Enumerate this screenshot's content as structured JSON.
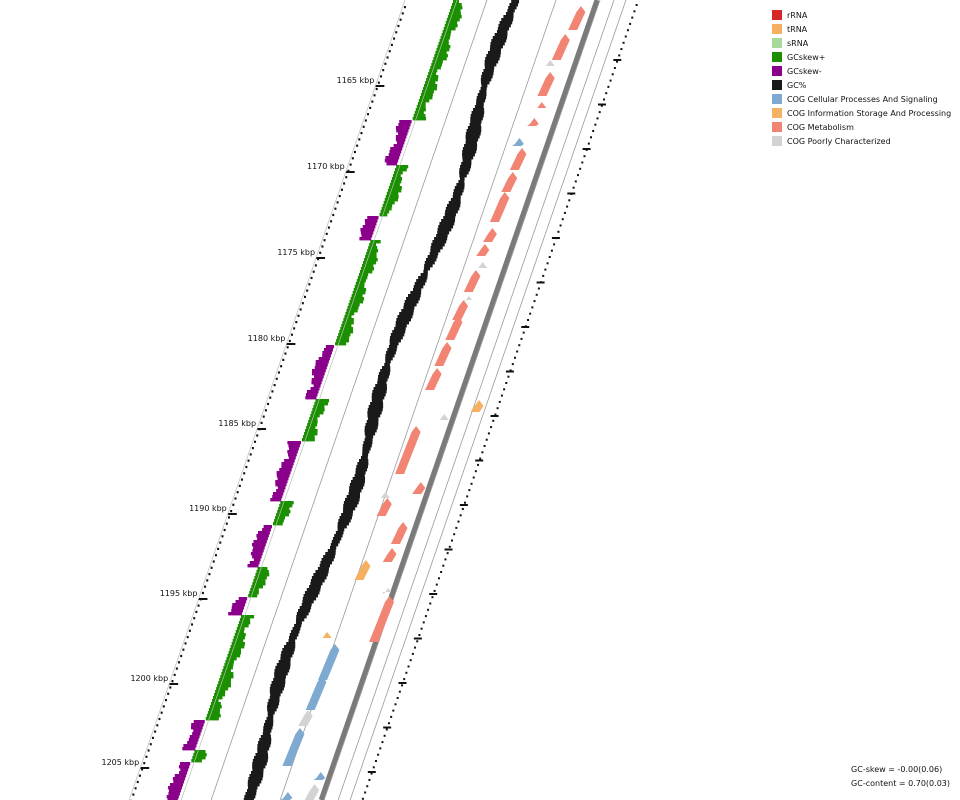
{
  "legend": [
    {
      "label": "rRNA",
      "color": "#d62728"
    },
    {
      "label": "tRNA",
      "color": "#f5b061"
    },
    {
      "label": "sRNA",
      "color": "#a6d99a"
    },
    {
      "label": "GCskew+",
      "color": "#1a8f00"
    },
    {
      "label": "GCskew-",
      "color": "#8b008b"
    },
    {
      "label": "GC%",
      "color": "#1a1a1a"
    },
    {
      "label": "COG Cellular Processes And Signaling",
      "color": "#7ea9d1"
    },
    {
      "label": "COG Information Storage And Processing",
      "color": "#f5b061"
    },
    {
      "label": "COG Metabolism",
      "color": "#f28474"
    },
    {
      "label": "COG Poorly Characterized",
      "color": "#d3d3d3"
    }
  ],
  "ticks": [
    "1165 kbp",
    "1170 kbp",
    "1175 kbp",
    "1180 kbp",
    "1185 kbp",
    "1190 kbp",
    "1195 kbp",
    "1200 kbp",
    "1205 kbp"
  ],
  "stats": {
    "gc_skew": "GC-skew = -0.00(0.06)",
    "gc_content": "GC-content = 0.70(0.03)"
  },
  "chart_data": {
    "type": "circular genome map (zoomed arc)",
    "axis_ticks_kbp": [
      1165,
      1170,
      1175,
      1180,
      1185,
      1190,
      1195,
      1200,
      1205
    ],
    "tracks": [
      "GCskew+",
      "GCskew-",
      "GC%",
      "COG features (forward strand)",
      "COG features (reverse strand)"
    ],
    "summary": {
      "gc_skew_mean": -0.0,
      "gc_skew_sd": 0.06,
      "gc_content_mean": 0.7,
      "gc_content_sd": 0.03
    }
  }
}
